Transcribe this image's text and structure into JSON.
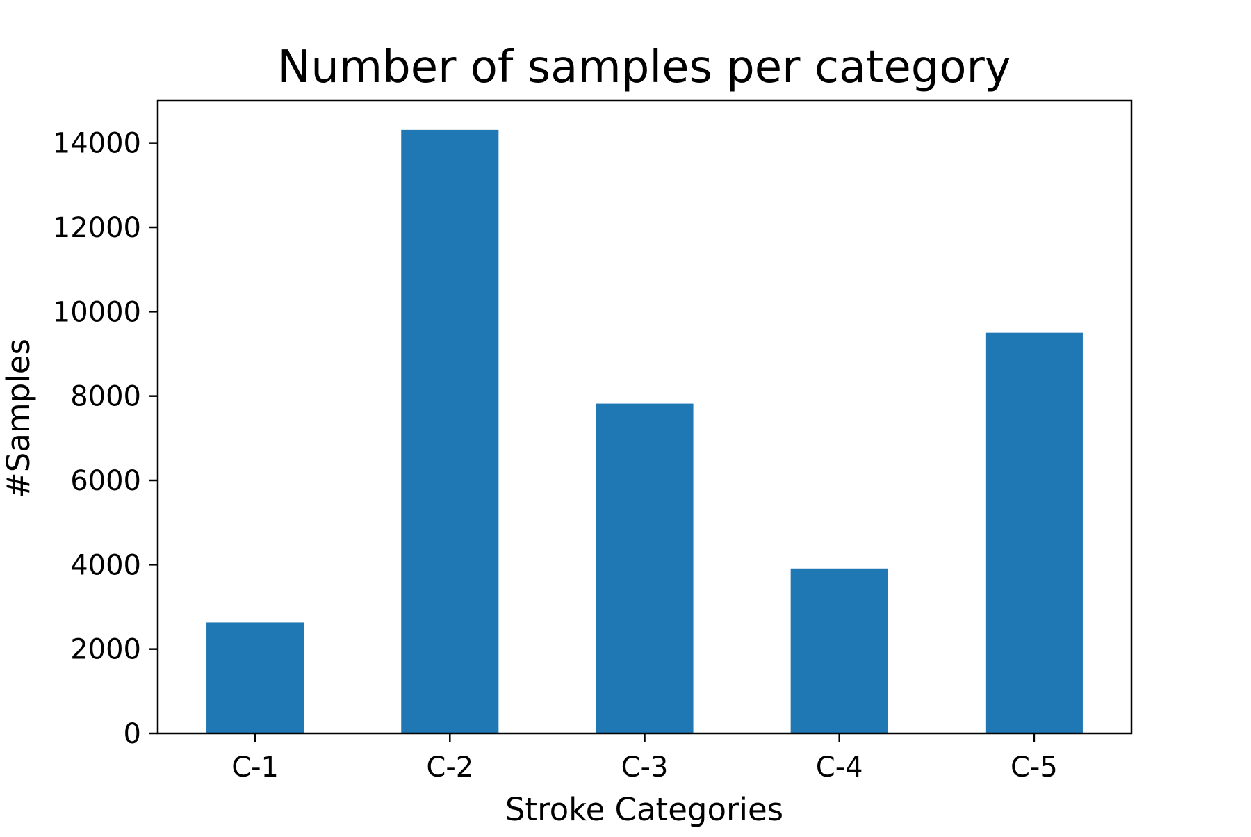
{
  "chart_data": {
    "type": "bar",
    "title": "Number of samples per category",
    "xlabel": "Stroke Categories",
    "ylabel": "#Samples",
    "categories": [
      "C-1",
      "C-2",
      "C-3",
      "C-4",
      "C-5"
    ],
    "values": [
      2630,
      14310,
      7820,
      3910,
      9500
    ],
    "ylim": [
      0,
      15000
    ],
    "yticks": [
      0,
      2000,
      4000,
      6000,
      8000,
      10000,
      12000,
      14000
    ],
    "grid": false,
    "legend": "none",
    "colors": {
      "bar": "#1f77b4",
      "axis": "#000000",
      "background": "#ffffff"
    }
  }
}
